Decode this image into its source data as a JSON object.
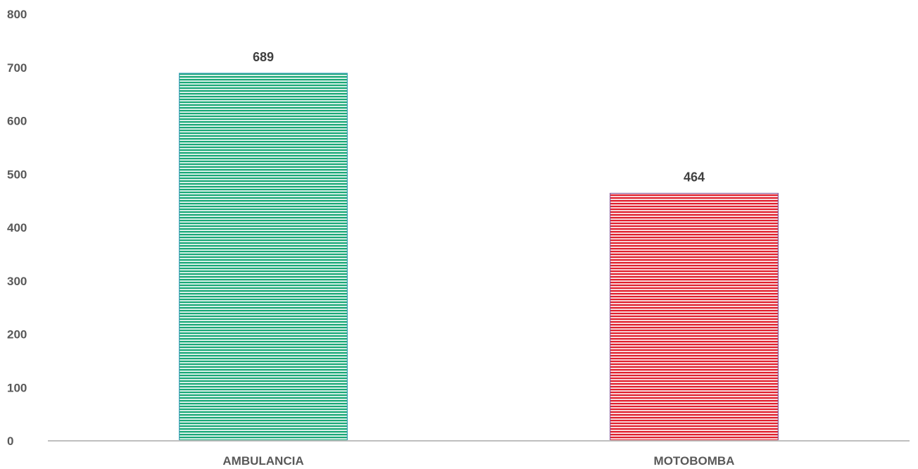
{
  "chart_data": {
    "type": "bar",
    "categories": [
      "AMBULANCIA",
      "MOTOBOMBA"
    ],
    "values": [
      689,
      464
    ],
    "data_labels": [
      "689",
      "464"
    ],
    "bar_colors": [
      "#1aa877",
      "#e0202e"
    ],
    "bar_stripe_colors": [
      "#3aa0b8",
      "#8a5a9a"
    ],
    "ylim": [
      0,
      800
    ],
    "yticks": [
      0,
      100,
      200,
      300,
      400,
      500,
      600,
      700,
      800
    ],
    "ytick_labels": [
      "0",
      "100",
      "200",
      "300",
      "400",
      "500",
      "600",
      "700",
      "800"
    ],
    "title": "",
    "xlabel": "",
    "ylabel": "",
    "grid": false,
    "legend": "none",
    "axis_color": "#bfbfbf"
  }
}
